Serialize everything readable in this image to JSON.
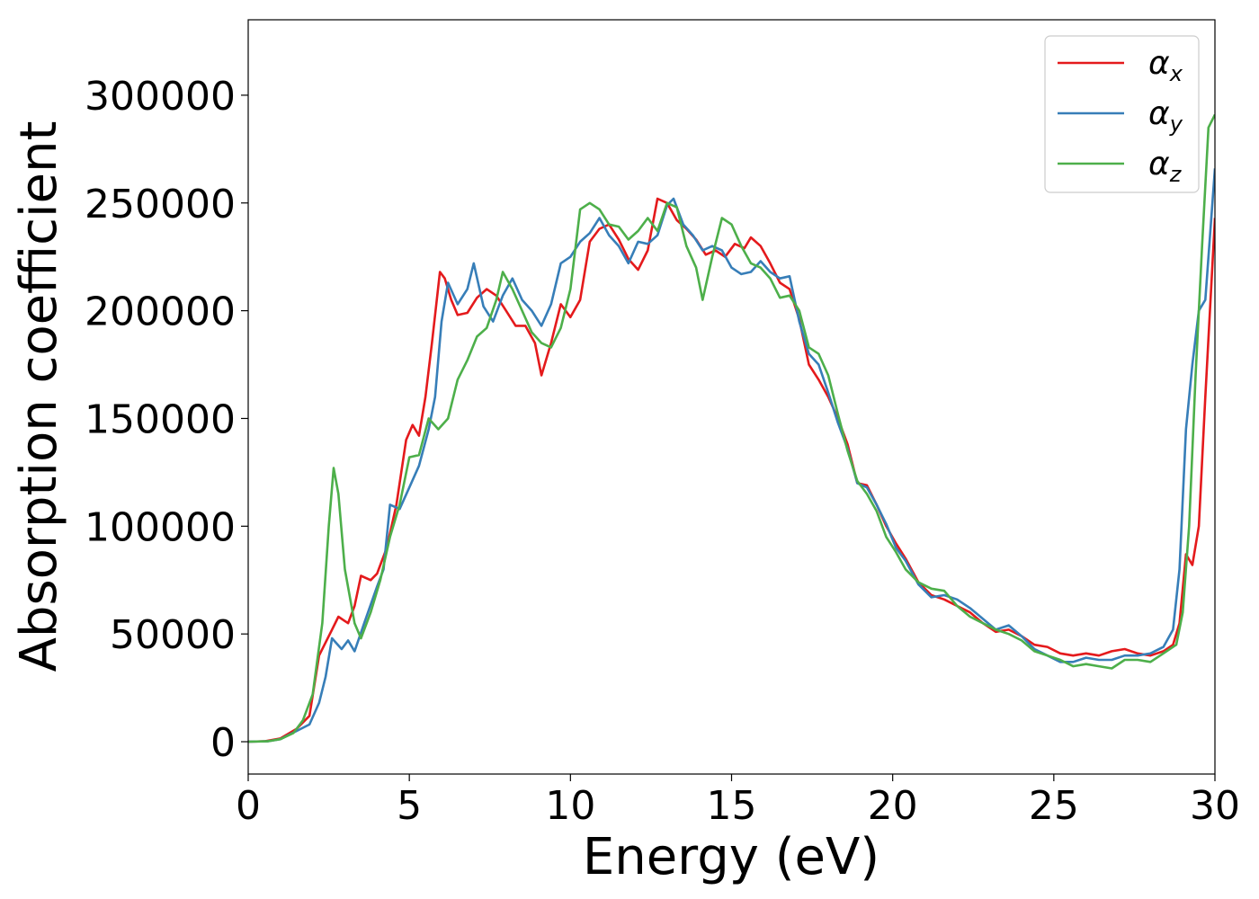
{
  "chart_data": {
    "type": "line",
    "title": "",
    "xlabel": "Energy (eV)",
    "ylabel": "Absorption coefficient",
    "xlim": [
      0,
      30
    ],
    "ylim": [
      -15000,
      335000
    ],
    "xticks": [
      0,
      5,
      10,
      15,
      20,
      25,
      30
    ],
    "yticks": [
      0,
      50000,
      100000,
      150000,
      200000,
      250000,
      300000
    ],
    "grid": false,
    "legend_position": "top-right",
    "series": [
      {
        "name": "α_x",
        "symbol": "α",
        "subscript": "x",
        "color": "#e41a1c",
        "points": [
          [
            0,
            0
          ],
          [
            0.5,
            200
          ],
          [
            1,
            1500
          ],
          [
            1.5,
            6000
          ],
          [
            1.9,
            12000
          ],
          [
            2.2,
            40000
          ],
          [
            2.6,
            52000
          ],
          [
            2.8,
            58000
          ],
          [
            3.1,
            55000
          ],
          [
            3.3,
            63000
          ],
          [
            3.5,
            77000
          ],
          [
            3.8,
            75000
          ],
          [
            4,
            78000
          ],
          [
            4.3,
            90000
          ],
          [
            4.6,
            110000
          ],
          [
            4.9,
            140000
          ],
          [
            5.1,
            147000
          ],
          [
            5.3,
            142000
          ],
          [
            5.5,
            160000
          ],
          [
            5.7,
            185000
          ],
          [
            5.95,
            218000
          ],
          [
            6.1,
            215000
          ],
          [
            6.3,
            205000
          ],
          [
            6.5,
            198000
          ],
          [
            6.8,
            199000
          ],
          [
            7.1,
            206000
          ],
          [
            7.4,
            210000
          ],
          [
            7.7,
            207000
          ],
          [
            8.0,
            200000
          ],
          [
            8.3,
            193000
          ],
          [
            8.6,
            193000
          ],
          [
            8.9,
            185000
          ],
          [
            9.1,
            170000
          ],
          [
            9.4,
            185000
          ],
          [
            9.7,
            203000
          ],
          [
            10.0,
            197000
          ],
          [
            10.3,
            205000
          ],
          [
            10.6,
            232000
          ],
          [
            10.9,
            238000
          ],
          [
            11.2,
            240000
          ],
          [
            11.5,
            233000
          ],
          [
            11.8,
            224000
          ],
          [
            12.1,
            219000
          ],
          [
            12.4,
            228000
          ],
          [
            12.7,
            252000
          ],
          [
            13.0,
            250000
          ],
          [
            13.3,
            242000
          ],
          [
            13.6,
            238000
          ],
          [
            13.9,
            233000
          ],
          [
            14.2,
            226000
          ],
          [
            14.5,
            228000
          ],
          [
            14.8,
            225000
          ],
          [
            15.1,
            231000
          ],
          [
            15.4,
            229000
          ],
          [
            15.6,
            234000
          ],
          [
            15.9,
            230000
          ],
          [
            16.2,
            222000
          ],
          [
            16.5,
            213000
          ],
          [
            16.8,
            210000
          ],
          [
            17.1,
            196000
          ],
          [
            17.4,
            175000
          ],
          [
            17.7,
            168000
          ],
          [
            18.0,
            160000
          ],
          [
            18.3,
            150000
          ],
          [
            18.6,
            138000
          ],
          [
            18.9,
            120000
          ],
          [
            19.2,
            119000
          ],
          [
            19.5,
            110000
          ],
          [
            19.8,
            100000
          ],
          [
            20.1,
            92000
          ],
          [
            20.4,
            85000
          ],
          [
            20.8,
            74000
          ],
          [
            21.2,
            68000
          ],
          [
            21.6,
            66000
          ],
          [
            22.0,
            63000
          ],
          [
            22.4,
            60000
          ],
          [
            22.8,
            55000
          ],
          [
            23.2,
            51000
          ],
          [
            23.6,
            52000
          ],
          [
            24.0,
            49000
          ],
          [
            24.4,
            45000
          ],
          [
            24.8,
            44000
          ],
          [
            25.2,
            41000
          ],
          [
            25.6,
            40000
          ],
          [
            26.0,
            41000
          ],
          [
            26.4,
            40000
          ],
          [
            26.8,
            42000
          ],
          [
            27.2,
            43000
          ],
          [
            27.6,
            41000
          ],
          [
            28.0,
            40000
          ],
          [
            28.4,
            42000
          ],
          [
            28.7,
            45000
          ],
          [
            28.9,
            55000
          ],
          [
            29.1,
            87000
          ],
          [
            29.3,
            82000
          ],
          [
            29.5,
            100000
          ],
          [
            29.7,
            160000
          ],
          [
            30.0,
            243000
          ]
        ]
      },
      {
        "name": "α_y",
        "symbol": "α",
        "subscript": "y",
        "color": "#377eb8",
        "points": [
          [
            0,
            0
          ],
          [
            0.6,
            200
          ],
          [
            1,
            1200
          ],
          [
            1.5,
            5000
          ],
          [
            1.9,
            8000
          ],
          [
            2.2,
            18000
          ],
          [
            2.4,
            30000
          ],
          [
            2.6,
            48000
          ],
          [
            2.9,
            43000
          ],
          [
            3.1,
            47000
          ],
          [
            3.3,
            42000
          ],
          [
            3.6,
            55000
          ],
          [
            4.0,
            72000
          ],
          [
            4.2,
            80000
          ],
          [
            4.4,
            110000
          ],
          [
            4.7,
            108000
          ],
          [
            5.0,
            118000
          ],
          [
            5.3,
            128000
          ],
          [
            5.6,
            145000
          ],
          [
            5.8,
            160000
          ],
          [
            6.0,
            195000
          ],
          [
            6.2,
            213000
          ],
          [
            6.5,
            203000
          ],
          [
            6.8,
            210000
          ],
          [
            7.0,
            222000
          ],
          [
            7.3,
            202000
          ],
          [
            7.6,
            195000
          ],
          [
            7.9,
            207000
          ],
          [
            8.2,
            215000
          ],
          [
            8.5,
            205000
          ],
          [
            8.8,
            200000
          ],
          [
            9.1,
            193000
          ],
          [
            9.4,
            203000
          ],
          [
            9.7,
            222000
          ],
          [
            10.0,
            225000
          ],
          [
            10.3,
            232000
          ],
          [
            10.6,
            236000
          ],
          [
            10.9,
            243000
          ],
          [
            11.2,
            235000
          ],
          [
            11.5,
            230000
          ],
          [
            11.8,
            222000
          ],
          [
            12.1,
            232000
          ],
          [
            12.4,
            231000
          ],
          [
            12.7,
            235000
          ],
          [
            13.0,
            249000
          ],
          [
            13.2,
            252000
          ],
          [
            13.5,
            240000
          ],
          [
            13.8,
            235000
          ],
          [
            14.1,
            228000
          ],
          [
            14.4,
            230000
          ],
          [
            14.7,
            228000
          ],
          [
            15.0,
            220000
          ],
          [
            15.3,
            217000
          ],
          [
            15.6,
            218000
          ],
          [
            15.9,
            223000
          ],
          [
            16.2,
            218000
          ],
          [
            16.5,
            215000
          ],
          [
            16.8,
            216000
          ],
          [
            17.1,
            195000
          ],
          [
            17.4,
            180000
          ],
          [
            17.7,
            175000
          ],
          [
            18.0,
            162000
          ],
          [
            18.3,
            148000
          ],
          [
            18.6,
            136000
          ],
          [
            18.9,
            120000
          ],
          [
            19.2,
            118000
          ],
          [
            19.5,
            110000
          ],
          [
            19.8,
            101000
          ],
          [
            20.1,
            90000
          ],
          [
            20.4,
            84000
          ],
          [
            20.8,
            73000
          ],
          [
            21.2,
            67000
          ],
          [
            21.6,
            68000
          ],
          [
            22.0,
            66000
          ],
          [
            22.4,
            62000
          ],
          [
            22.8,
            57000
          ],
          [
            23.2,
            52000
          ],
          [
            23.6,
            54000
          ],
          [
            24.0,
            49000
          ],
          [
            24.4,
            43000
          ],
          [
            24.8,
            40000
          ],
          [
            25.2,
            37000
          ],
          [
            25.6,
            37000
          ],
          [
            26.0,
            39000
          ],
          [
            26.4,
            38000
          ],
          [
            26.8,
            38000
          ],
          [
            27.2,
            40000
          ],
          [
            27.6,
            40000
          ],
          [
            28.0,
            41000
          ],
          [
            28.4,
            44000
          ],
          [
            28.7,
            52000
          ],
          [
            28.9,
            80000
          ],
          [
            29.1,
            145000
          ],
          [
            29.3,
            175000
          ],
          [
            29.5,
            200000
          ],
          [
            29.7,
            205000
          ],
          [
            30.0,
            266000
          ]
        ]
      },
      {
        "name": "α_z",
        "symbol": "α",
        "subscript": "z",
        "color": "#4daf4a",
        "points": [
          [
            0,
            0
          ],
          [
            0.6,
            200
          ],
          [
            1,
            1200
          ],
          [
            1.4,
            4000
          ],
          [
            1.7,
            10000
          ],
          [
            2.0,
            22000
          ],
          [
            2.3,
            55000
          ],
          [
            2.5,
            100000
          ],
          [
            2.65,
            127000
          ],
          [
            2.8,
            115000
          ],
          [
            3.0,
            80000
          ],
          [
            3.3,
            55000
          ],
          [
            3.5,
            48000
          ],
          [
            3.8,
            60000
          ],
          [
            4.1,
            75000
          ],
          [
            4.4,
            95000
          ],
          [
            4.7,
            110000
          ],
          [
            5.0,
            132000
          ],
          [
            5.3,
            133000
          ],
          [
            5.6,
            150000
          ],
          [
            5.9,
            145000
          ],
          [
            6.2,
            150000
          ],
          [
            6.5,
            168000
          ],
          [
            6.8,
            177000
          ],
          [
            7.1,
            188000
          ],
          [
            7.4,
            192000
          ],
          [
            7.7,
            205000
          ],
          [
            7.9,
            218000
          ],
          [
            8.2,
            210000
          ],
          [
            8.5,
            200000
          ],
          [
            8.8,
            190000
          ],
          [
            9.1,
            185000
          ],
          [
            9.4,
            183000
          ],
          [
            9.7,
            192000
          ],
          [
            10.0,
            210000
          ],
          [
            10.3,
            247000
          ],
          [
            10.6,
            250000
          ],
          [
            10.9,
            247000
          ],
          [
            11.2,
            240000
          ],
          [
            11.5,
            239000
          ],
          [
            11.8,
            233000
          ],
          [
            12.1,
            237000
          ],
          [
            12.4,
            243000
          ],
          [
            12.7,
            237000
          ],
          [
            13.0,
            250000
          ],
          [
            13.3,
            248000
          ],
          [
            13.6,
            230000
          ],
          [
            13.9,
            220000
          ],
          [
            14.1,
            205000
          ],
          [
            14.4,
            225000
          ],
          [
            14.7,
            243000
          ],
          [
            15.0,
            240000
          ],
          [
            15.3,
            230000
          ],
          [
            15.6,
            222000
          ],
          [
            15.9,
            220000
          ],
          [
            16.2,
            215000
          ],
          [
            16.5,
            206000
          ],
          [
            16.8,
            207000
          ],
          [
            17.1,
            200000
          ],
          [
            17.4,
            183000
          ],
          [
            17.7,
            180000
          ],
          [
            18.0,
            170000
          ],
          [
            18.3,
            152000
          ],
          [
            18.6,
            135000
          ],
          [
            18.9,
            121000
          ],
          [
            19.2,
            115000
          ],
          [
            19.5,
            107000
          ],
          [
            19.8,
            95000
          ],
          [
            20.1,
            88000
          ],
          [
            20.4,
            80000
          ],
          [
            20.8,
            74000
          ],
          [
            21.2,
            71000
          ],
          [
            21.6,
            70000
          ],
          [
            22.0,
            63000
          ],
          [
            22.4,
            58000
          ],
          [
            22.8,
            55000
          ],
          [
            23.2,
            52000
          ],
          [
            23.6,
            50000
          ],
          [
            24.0,
            47000
          ],
          [
            24.4,
            42000
          ],
          [
            24.8,
            40000
          ],
          [
            25.2,
            38000
          ],
          [
            25.6,
            35000
          ],
          [
            26.0,
            36000
          ],
          [
            26.4,
            35000
          ],
          [
            26.8,
            34000
          ],
          [
            27.2,
            38000
          ],
          [
            27.6,
            38000
          ],
          [
            28.0,
            37000
          ],
          [
            28.4,
            41000
          ],
          [
            28.8,
            45000
          ],
          [
            29.0,
            60000
          ],
          [
            29.2,
            100000
          ],
          [
            29.4,
            170000
          ],
          [
            29.6,
            230000
          ],
          [
            29.8,
            285000
          ],
          [
            30.0,
            291000
          ]
        ]
      }
    ]
  }
}
